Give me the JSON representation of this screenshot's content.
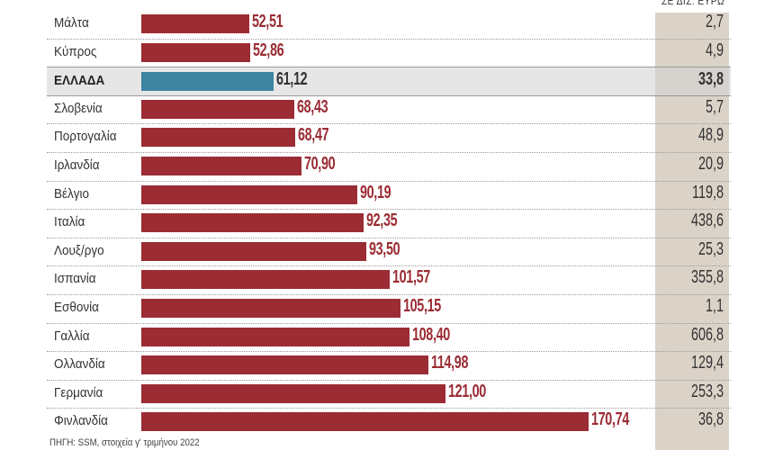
{
  "chart_data": {
    "type": "bar",
    "orientation": "horizontal",
    "column_header": "ΣΕ ΔΙΣ. ΕΥΡΩ",
    "categories": [
      "Μάλτα",
      "Κύπρος",
      "ΕΛΛΑΔΑ",
      "Σλοβενία",
      "Πορτογαλία",
      "Ιρλανδία",
      "Βέλγιο",
      "Ιταλία",
      "Λουξ/ργο",
      "Ισπανία",
      "Εσθονία",
      "Γαλλία",
      "Ολλανδία",
      "Γερμανία",
      "Φινλανδία"
    ],
    "values": [
      52.51,
      52.86,
      61.12,
      68.43,
      68.47,
      70.9,
      90.19,
      92.35,
      93.5,
      101.57,
      105.15,
      108.4,
      114.98,
      121.0,
      170.74
    ],
    "value_labels": [
      "52,51",
      "52,86",
      "61,12",
      "68,43",
      "68,47",
      "70,90",
      "90,19",
      "92,35",
      "93,50",
      "101,57",
      "105,15",
      "108,40",
      "114,98",
      "121,00",
      "170,74"
    ],
    "column_values": [
      "2,7",
      "4,9",
      "33,8",
      "5,7",
      "48,9",
      "20,9",
      "119,8",
      "438,6",
      "25,3",
      "355,8",
      "1,1",
      "606,8",
      "129,4",
      "253,3",
      "36,8"
    ],
    "highlight": "ΕΛΛΑΔΑ",
    "colors": {
      "bar": "#9b2c34",
      "highlight": "#3d84a0",
      "column_bg": "#dcd3c8"
    },
    "source": "ΠΗΓΗ: SSM, στοιχεία γ' τριμήνου 2022"
  }
}
